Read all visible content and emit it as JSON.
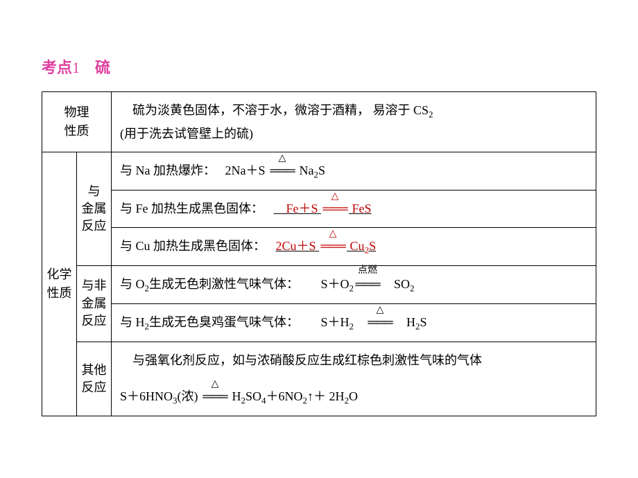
{
  "title": {
    "prefix": "考点",
    "number": "1",
    "suffix": "　硫"
  },
  "rows": {
    "phys_label": "物理\n性质",
    "phys_content_1": "硫为淡黄色固体，不溶于水，微溶于酒精， 易溶于 ",
    "phys_cs2": "CS",
    "phys_content_2": "(用于洗去试管壁上的硫)",
    "chem_label": "化学\n性质",
    "metal_label": "与\n金属\n反应",
    "na_text": "与 Na 加热爆炸：",
    "na_eq_left": "2Na＋S",
    "na_eq_right": "Na",
    "na_eq_right2": "S",
    "fe_text": "与 Fe 加热生成黑色固体：",
    "fe_eq_left": "Fe＋S",
    "fe_eq_right": "FeS",
    "cu_text": "与 Cu 加热生成黑色固体：",
    "cu_eq_left": "2Cu＋S",
    "cu_eq_right": "Cu",
    "cu_eq_right2": "S",
    "nonmetal_label": "与非\n金属\n反应",
    "o2_text": "与 O",
    "o2_text2": "生成无色刺激性气味气体：",
    "o2_eq_left": "S＋O",
    "o2_eq_right": "SO",
    "o2_cond": "点燃",
    "h2_text": "与 H",
    "h2_text2": "生成无色臭鸡蛋气味气体：",
    "h2_eq_left": "S＋H",
    "h2_eq_right": "H",
    "h2_eq_right2": "S",
    "other_label": "其他\n反应",
    "other_text": "与强氧化剂反应，如与浓硝酸反应生成红棕色刺激性气味的气体",
    "other_eq_left": "S＋6HNO",
    "other_eq_mid": "(浓)",
    "other_eq_h2so4": "H",
    "other_eq_so4": "SO",
    "other_eq_no2": "＋6NO",
    "other_eq_arrow": "↑＋ 2H",
    "other_eq_o": "O"
  },
  "colors": {
    "title_color": "#e040a0",
    "red_color": "#c00000",
    "border_color": "#000000",
    "bg_color": "#ffffff"
  }
}
